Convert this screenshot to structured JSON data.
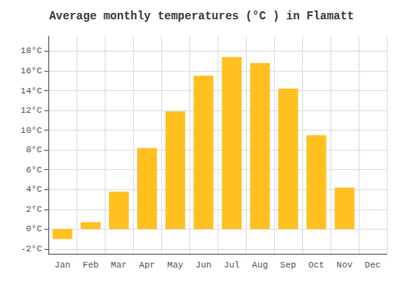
{
  "chart_data": {
    "type": "bar",
    "title": "Average monthly temperatures (°C ) in Flamatt",
    "categories": [
      "Jan",
      "Feb",
      "Mar",
      "Apr",
      "May",
      "Jun",
      "Jul",
      "Aug",
      "Sep",
      "Oct",
      "Nov",
      "Dec"
    ],
    "values": [
      -1.0,
      0.7,
      3.8,
      8.2,
      11.9,
      15.5,
      17.4,
      16.8,
      14.2,
      9.5,
      4.2,
      0.0
    ],
    "color": "#FFC020",
    "ylim": [
      -2.5,
      19.5
    ],
    "yticks": [
      {
        "value": -2,
        "label": "-2°C"
      },
      {
        "value": 0,
        "label": "0°C"
      },
      {
        "value": 2,
        "label": "2°C"
      },
      {
        "value": 4,
        "label": "4°C"
      },
      {
        "value": 6,
        "label": "6°C"
      },
      {
        "value": 8,
        "label": "8°C"
      },
      {
        "value": 10,
        "label": "10°C"
      },
      {
        "value": 12,
        "label": "12°C"
      },
      {
        "value": 14,
        "label": "14°C"
      },
      {
        "value": 16,
        "label": "16°C"
      },
      {
        "value": 18,
        "label": "18°C"
      }
    ],
    "grid": true
  }
}
